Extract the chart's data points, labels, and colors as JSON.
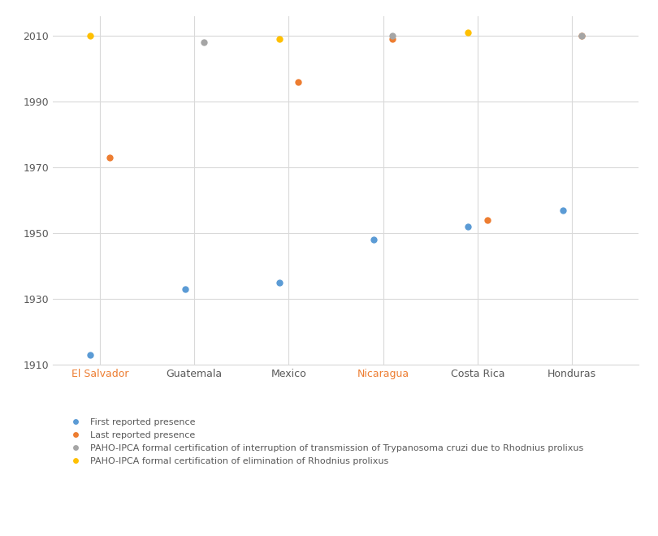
{
  "countries": [
    "El Salvador",
    "Guatemala",
    "Mexico",
    "Nicaragua",
    "Costa Rica",
    "Honduras"
  ],
  "x_positions": [
    1,
    2,
    3,
    4,
    5,
    6
  ],
  "first_reported": [
    1913,
    1933,
    1935,
    1948,
    1952,
    1957
  ],
  "last_reported": [
    1973,
    null,
    1996,
    2009,
    1954,
    2010
  ],
  "paho_interruption": [
    null,
    2008,
    null,
    2010,
    null,
    2010
  ],
  "paho_elimination": [
    2010,
    null,
    2009,
    null,
    2011,
    null
  ],
  "first_color": "#5B9BD5",
  "last_color": "#ED7D31",
  "interruption_color": "#A5A5A5",
  "elimination_color": "#FFC000",
  "bg_color": "#FFFFFF",
  "grid_color": "#D9D9D9",
  "ylim": [
    1910,
    2016
  ],
  "yticks": [
    1910,
    1930,
    1950,
    1970,
    1990,
    2010
  ],
  "marker_size": 6,
  "xlabel_colors": [
    "#ED7D31",
    "#595959",
    "#595959",
    "#ED7D31",
    "#595959",
    "#595959"
  ],
  "legend_first": "First reported presence",
  "legend_last": "Last reported presence",
  "legend_interruption": "PAHO-IPCA formal certification of interruption of transmission of Trypanosoma cruzi due to Rhodnius prolixus",
  "legend_elimination": "PAHO-IPCA formal certification of elimination of Rhodnius prolixus"
}
